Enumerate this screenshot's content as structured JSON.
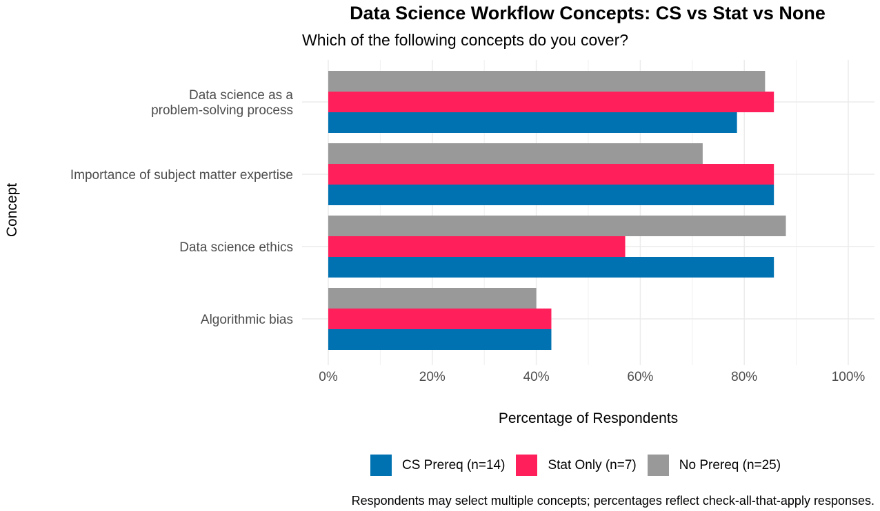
{
  "chart_data": {
    "type": "bar",
    "orientation": "horizontal",
    "title": "Data Science Workflow Concepts: CS vs Stat vs None",
    "subtitle": "Which of the following concepts do you cover?",
    "xlabel": "Percentage of Respondents",
    "ylabel": "Concept",
    "xlim": [
      0,
      100
    ],
    "x_ticks": [
      0,
      20,
      40,
      60,
      80,
      100
    ],
    "x_tick_labels": [
      "0%",
      "20%",
      "40%",
      "60%",
      "80%",
      "100%"
    ],
    "categories": [
      [
        "Data science as a",
        "problem-solving process"
      ],
      [
        "Importance of subject matter expertise"
      ],
      [
        "Data science ethics"
      ],
      [
        "Algorithmic bias"
      ]
    ],
    "series": [
      {
        "name": "No Prereq (n=25)",
        "color": "#999999",
        "values": [
          84,
          72,
          88,
          40
        ]
      },
      {
        "name": "Stat Only (n=7)",
        "color": "#FF1F5B",
        "values": [
          85.7,
          85.7,
          57.1,
          42.9
        ]
      },
      {
        "name": "CS Prereq (n=14)",
        "color": "#0072B2",
        "values": [
          78.6,
          85.7,
          85.7,
          42.9
        ]
      }
    ],
    "legend": {
      "position": "bottom",
      "order": [
        "CS Prereq (n=14)",
        "Stat Only (n=7)",
        "No Prereq (n=25)"
      ]
    },
    "grid": true,
    "caption": "Respondents may select multiple concepts; percentages reflect check-all-that-apply responses."
  }
}
